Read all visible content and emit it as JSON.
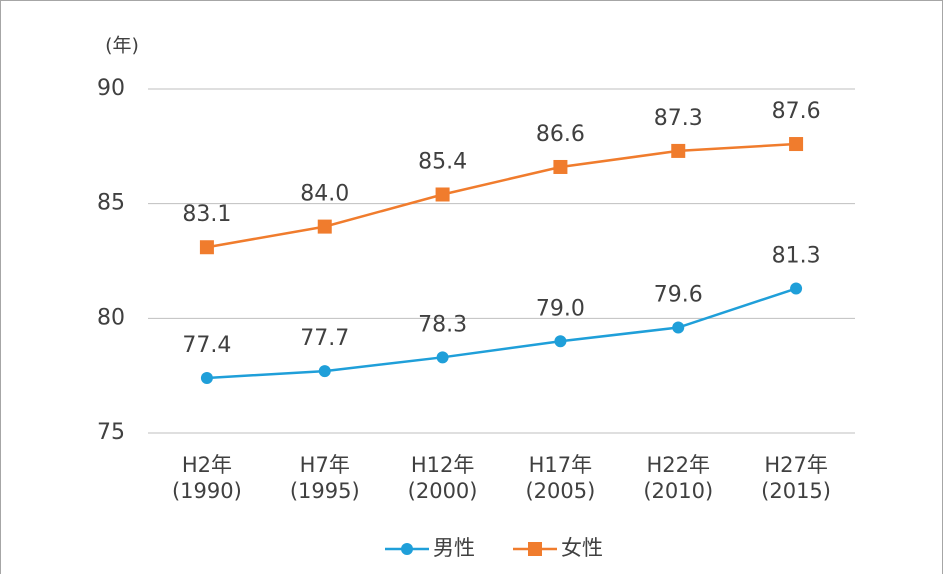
{
  "chart_data": {
    "type": "line",
    "y_axis_label": "(年)",
    "categories": [
      "H2年\n(1990)",
      "H7年\n(1995)",
      "H12年\n(2000)",
      "H17年\n(2005)",
      "H22年\n(2010)",
      "H27年\n(2015)"
    ],
    "series": [
      {
        "name": "男性",
        "color": "#1f9fd9",
        "marker": "circle",
        "values": [
          77.4,
          77.7,
          78.3,
          79.0,
          79.6,
          81.3
        ],
        "value_labels": [
          "77.4",
          "77.7",
          "78.3",
          "79.0",
          "79.6",
          "81.3"
        ]
      },
      {
        "name": "女性",
        "color": "#f07c2d",
        "marker": "square",
        "values": [
          83.1,
          84.0,
          85.4,
          86.6,
          87.3,
          87.6
        ],
        "value_labels": [
          "83.1",
          "84.0",
          "85.4",
          "86.6",
          "87.3",
          "87.6"
        ]
      }
    ],
    "ylim": [
      75,
      90
    ],
    "yticks": [
      75,
      80,
      85,
      90
    ],
    "grid": true,
    "legend": "bottom"
  }
}
